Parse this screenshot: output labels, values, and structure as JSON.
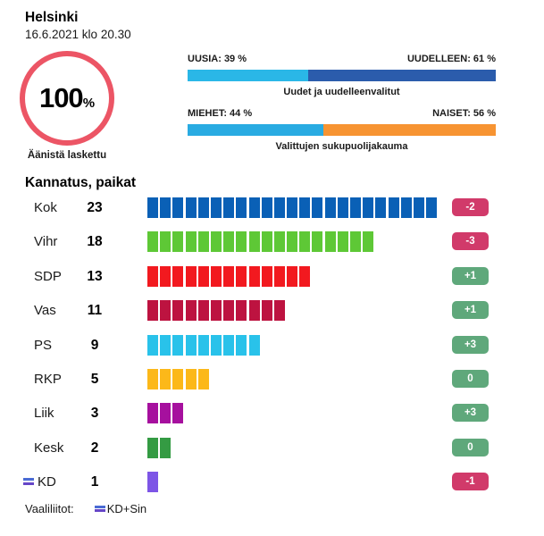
{
  "header": {
    "title": "Helsinki",
    "timestamp": "16.6.2021 klo 20.30",
    "counted_value": "100",
    "counted_unit": "%",
    "counted_label": "Äänistä laskettu",
    "ring_color": "#ec5565"
  },
  "chart_data": [
    {
      "type": "bar",
      "variant": "stacked-horizontal",
      "title": "Uudet ja uudelleenvalitut",
      "unit": "%",
      "series": [
        {
          "name": "UUSIA",
          "value": 39,
          "label": "UUSIA: 39 %",
          "color": "#2ab7e7"
        },
        {
          "name": "UUDELLEEN",
          "value": 61,
          "label": "UUDELLEEN: 61 %",
          "color": "#2b5cac"
        }
      ]
    },
    {
      "type": "bar",
      "variant": "stacked-horizontal",
      "title": "Valittujen sukupuolijakauma",
      "unit": "%",
      "series": [
        {
          "name": "MIEHET",
          "value": 44,
          "label": "MIEHET: 44 %",
          "color": "#29abe2"
        },
        {
          "name": "NAISET",
          "value": 56,
          "label": "NAISET: 56 %",
          "color": "#f79432"
        }
      ]
    },
    {
      "type": "bar",
      "variant": "seat-segments",
      "title": "Kannatus, paikat",
      "categories": [
        "Kok",
        "Vihr",
        "SDP",
        "Vas",
        "PS",
        "RKP",
        "Liik",
        "Kesk",
        "KD"
      ],
      "values": [
        23,
        18,
        13,
        11,
        9,
        5,
        3,
        2,
        1
      ],
      "changes": [
        "-2",
        "-3",
        "+1",
        "+1",
        "+3",
        "0",
        "+3",
        "0",
        "-1"
      ],
      "colors": [
        "#0a60b6",
        "#5ec836",
        "#f2191f",
        "#bd1340",
        "#29c2ea",
        "#fcb819",
        "#a6109e",
        "#349b43",
        "#7d55e6"
      ],
      "alliance_marked": [
        "KD"
      ],
      "badge_colors": {
        "negative": "#d13a6a",
        "non_negative": "#5fa87b"
      }
    }
  ],
  "footer": {
    "label": "Vaaliliitot:",
    "alliance_text": "KD+Sin",
    "alliance_icon_colors": [
      "#4a6bd4",
      "#6646c8"
    ]
  }
}
